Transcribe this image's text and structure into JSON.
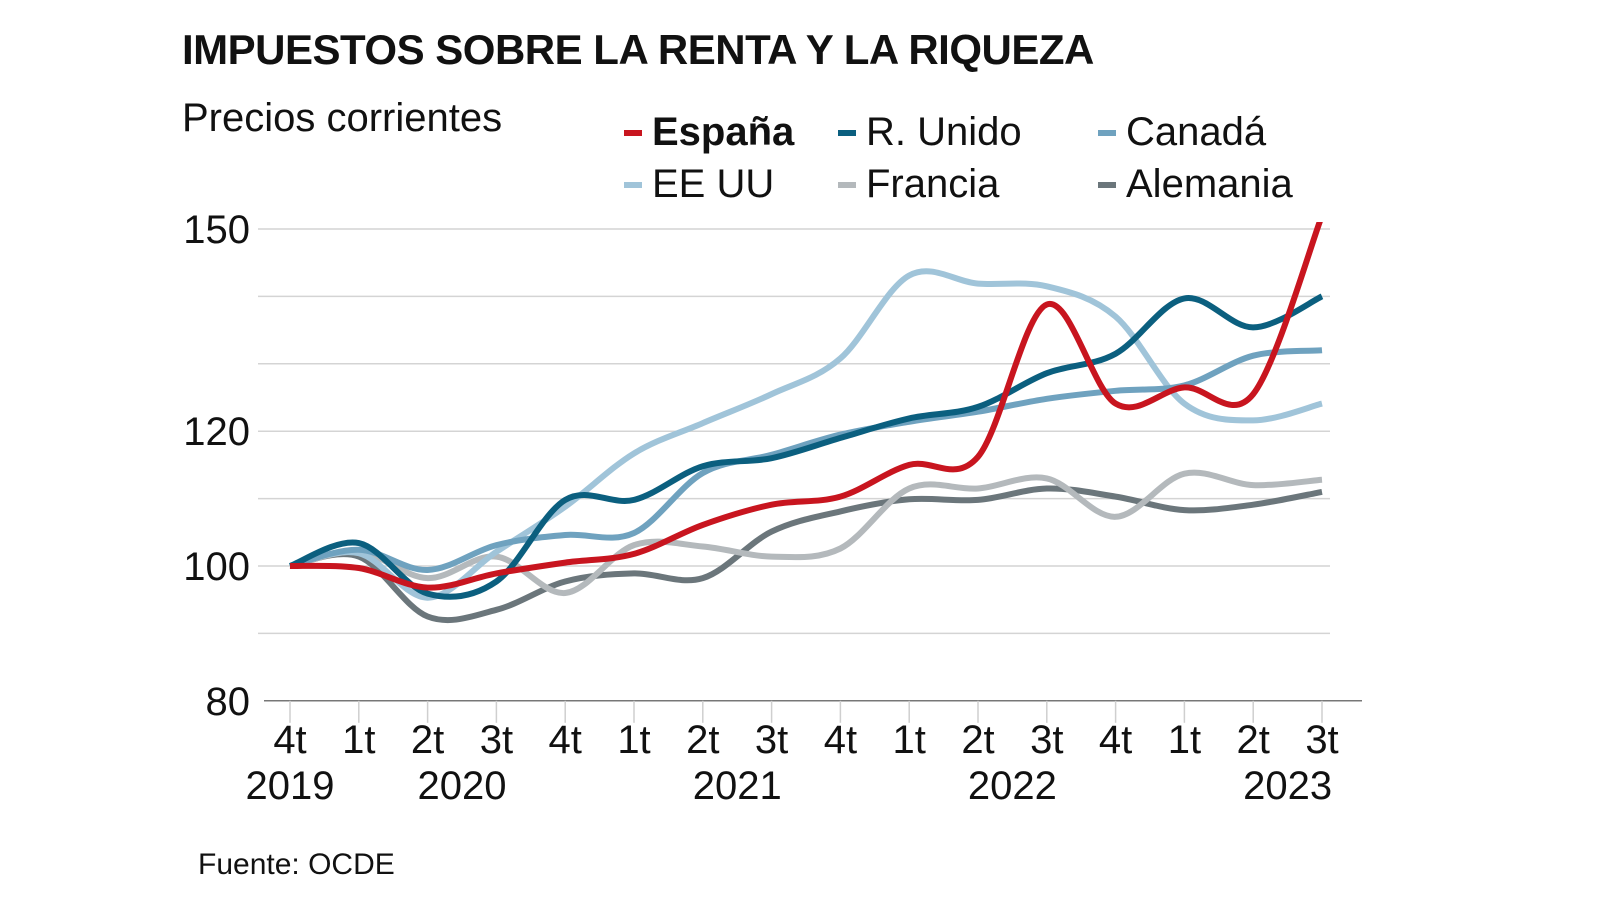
{
  "title": "IMPUESTOS SOBRE LA RENTA Y LA RIQUEZA",
  "subtitle": "Precios corrientes",
  "source": "Fuente: OCDE",
  "legend": [
    {
      "label": "España",
      "color": "#c8151f",
      "bold": true
    },
    {
      "label": "R. Unido",
      "color": "#0b5f7f",
      "bold": false
    },
    {
      "label": "Canadá",
      "color": "#6fa2bf",
      "bold": false
    },
    {
      "label": "EE UU",
      "color": "#a0c4d9",
      "bold": false
    },
    {
      "label": "Francia",
      "color": "#b4b9bc",
      "bold": false
    },
    {
      "label": "Alemania",
      "color": "#6b767b",
      "bold": false
    }
  ],
  "chart_data": {
    "type": "line",
    "title": "IMPUESTOS SOBRE LA RENTA Y LA RIQUEZA",
    "subtitle": "Precios corrientes",
    "xlabel": "",
    "ylabel": "",
    "x": [
      "4t 2019",
      "1t 2020",
      "2t 2020",
      "3t 2020",
      "4t 2020",
      "1t 2021",
      "2t 2021",
      "3t 2021",
      "4t 2021",
      "1t 2022",
      "2t 2022",
      "3t 2022",
      "4t 2022",
      "1t 2023",
      "2t 2023",
      "3t 2023"
    ],
    "x_tick_labels": [
      "4t",
      "1t",
      "2t",
      "3t",
      "4t",
      "1t",
      "2t",
      "3t",
      "4t",
      "1t",
      "2t",
      "3t",
      "4t",
      "1t",
      "2t",
      "3t"
    ],
    "x_year_labels": [
      {
        "label": "2019",
        "at_index": 0
      },
      {
        "label": "2020",
        "at_index": 2.5
      },
      {
        "label": "2021",
        "at_index": 6.5
      },
      {
        "label": "2022",
        "at_index": 10.5
      },
      {
        "label": "2023",
        "at_index": 14.5
      }
    ],
    "y_ticks_labeled": [
      150,
      120,
      100,
      80
    ],
    "y_gridlines": [
      150,
      140,
      130,
      120,
      110,
      100,
      90
    ],
    "ylim": [
      80,
      150
    ],
    "grid": true,
    "legend_position": "top-right",
    "series": [
      {
        "name": "España",
        "color": "#c8151f",
        "values": [
          100,
          99.7,
          96.8,
          98.9,
          100.5,
          101.8,
          106.1,
          109.1,
          110.3,
          115.0,
          116.2,
          138.8,
          124.1,
          126.5,
          125.5,
          152.0
        ]
      },
      {
        "name": "R. Unido",
        "color": "#0b5f7f",
        "values": [
          100,
          103.4,
          95.9,
          97.7,
          109.8,
          109.8,
          114.8,
          116.0,
          119.0,
          121.9,
          123.6,
          128.6,
          131.5,
          139.7,
          135.4,
          140.0
        ]
      },
      {
        "name": "Canadá",
        "color": "#6fa2bf",
        "values": [
          100,
          102.4,
          99.4,
          103.1,
          104.6,
          104.9,
          113.8,
          116.5,
          119.5,
          121.4,
          122.9,
          124.8,
          126.0,
          126.8,
          131.2,
          132.0
        ]
      },
      {
        "name": "EE UU",
        "color": "#a0c4d9",
        "values": [
          100,
          101.9,
          95.3,
          102.1,
          108.8,
          116.7,
          121.2,
          125.5,
          130.8,
          143.1,
          141.9,
          141.5,
          137.0,
          124.1,
          121.6,
          124.1
        ]
      },
      {
        "name": "Francia",
        "color": "#b4b9bc",
        "values": [
          100,
          102.1,
          98.2,
          101.4,
          96.0,
          103.1,
          102.9,
          101.4,
          102.6,
          111.5,
          111.5,
          113.0,
          107.3,
          113.7,
          112.0,
          112.8
        ]
      },
      {
        "name": "Alemania",
        "color": "#6b767b",
        "values": [
          100,
          101.4,
          92.5,
          93.5,
          97.7,
          98.9,
          98.2,
          105.1,
          108.1,
          109.9,
          109.8,
          111.5,
          110.3,
          108.3,
          109.1,
          111.0
        ]
      }
    ]
  }
}
